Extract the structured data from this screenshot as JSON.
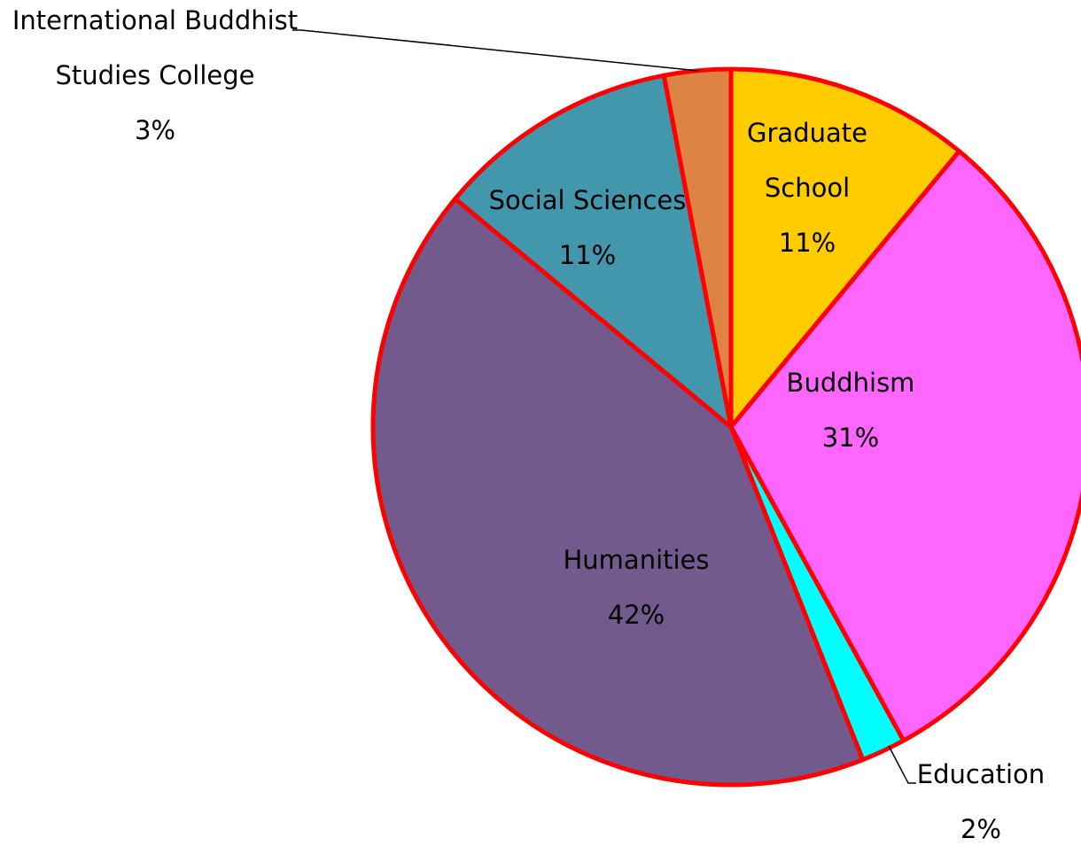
{
  "chart_data": {
    "type": "pie",
    "title": "",
    "slices": [
      {
        "name_lines": [
          "Graduate",
          "School"
        ],
        "value": 11,
        "value_label": "11%",
        "color": "#FFCC00"
      },
      {
        "name_lines": [
          "Buddhism"
        ],
        "value": 31,
        "value_label": "31%",
        "color": "#FF66FF"
      },
      {
        "name_lines": [
          "Education"
        ],
        "value": 2,
        "value_label": "2%",
        "color": "#00FFFF"
      },
      {
        "name_lines": [
          "Humanities"
        ],
        "value": 42,
        "value_label": "42%",
        "color": "#725A8C"
      },
      {
        "name_lines": [
          "Social Sciences"
        ],
        "value": 11,
        "value_label": "11%",
        "color": "#4397AC"
      },
      {
        "name_lines": [
          "International Buddhist",
          "Studies College"
        ],
        "value": 3,
        "value_label": "3%",
        "color": "#DD8444"
      }
    ],
    "border_color": "#FF0000",
    "legend": "none",
    "start_angle": "12 o'clock",
    "direction": "clockwise"
  }
}
